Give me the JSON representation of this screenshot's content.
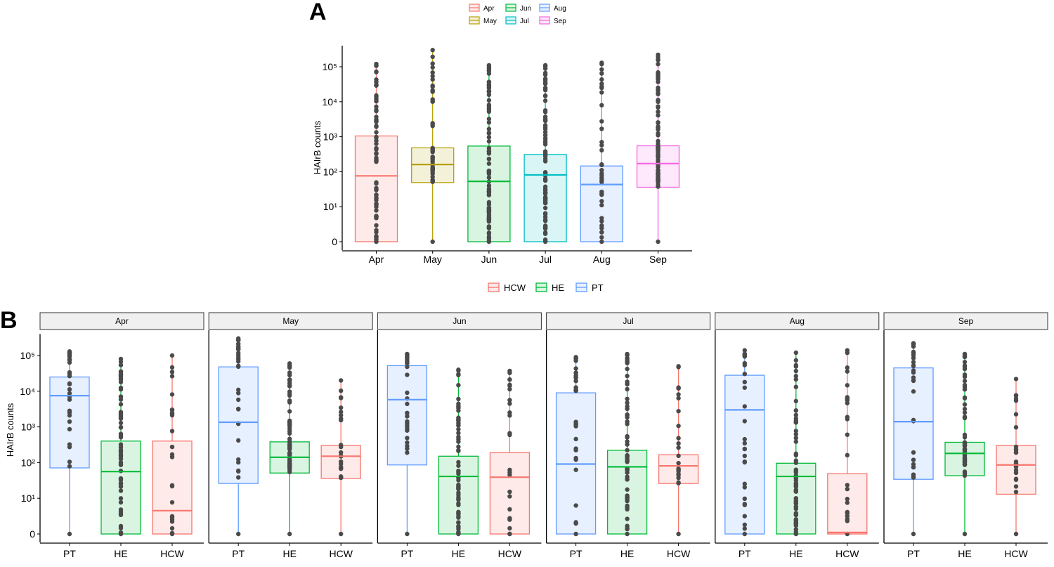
{
  "chart_data": [
    {
      "panel": "A",
      "type": "box",
      "title": "",
      "xlabel": "",
      "ylabel": "HAIrB counts",
      "yscale": "pseudo-log10",
      "y_ticks": [
        "0",
        "10¹",
        "10²",
        "10³",
        "10⁴",
        "10⁵"
      ],
      "categories": [
        "Apr",
        "May",
        "Jun",
        "Jul",
        "Aug",
        "Sep"
      ],
      "legend": {
        "position": "top",
        "entries": [
          "Apr",
          "May",
          "Jun",
          "Jul",
          "Aug",
          "Sep"
        ]
      },
      "colors": [
        "#F8766D",
        "#B79F00",
        "#00BA38",
        "#00BFC4",
        "#619CFF",
        "#F564E3"
      ],
      "series": [
        {
          "name": "Apr",
          "min": 0,
          "q1": 0,
          "median": 75,
          "q3": 1050,
          "max": 120000
        },
        {
          "name": "May",
          "min": 0,
          "q1": 48,
          "median": 160,
          "q3": 480,
          "max": 300000
        },
        {
          "name": "Jun",
          "min": 0,
          "q1": 0,
          "median": 52,
          "q3": 540,
          "max": 110000
        },
        {
          "name": "Jul",
          "min": 0,
          "q1": 0,
          "median": 80,
          "q3": 310,
          "max": 110000
        },
        {
          "name": "Aug",
          "min": 0,
          "q1": 0,
          "median": 42,
          "q3": 145,
          "max": 130000
        },
        {
          "name": "Sep",
          "min": 0,
          "q1": 35,
          "median": 170,
          "q3": 550,
          "max": 220000
        }
      ]
    },
    {
      "panel": "B",
      "type": "box",
      "title": "",
      "xlabel": "",
      "ylabel": "HAIrB counts",
      "yscale": "pseudo-log10",
      "y_ticks": [
        "0",
        "10¹",
        "10²",
        "10³",
        "10⁴",
        "10⁵"
      ],
      "legend": {
        "position": "top",
        "entries": [
          "HCW",
          "HE",
          "PT"
        ]
      },
      "group_colors": {
        "PT": "#619CFF",
        "HE": "#00BA38",
        "HCW": "#F8766D"
      },
      "categories": [
        "PT",
        "HE",
        "HCW"
      ],
      "facets": [
        {
          "label": "Apr",
          "boxes": [
            {
              "group": "PT",
              "min": 0,
              "q1": 70,
              "median": 7500,
              "q3": 25000,
              "max": 130000
            },
            {
              "group": "HE",
              "min": 0,
              "q1": 0,
              "median": 55,
              "q3": 400,
              "max": 80000
            },
            {
              "group": "HCW",
              "min": 0,
              "q1": 0,
              "median": 3.5,
              "q3": 400,
              "max": 100000
            }
          ]
        },
        {
          "label": "May",
          "boxes": [
            {
              "group": "PT",
              "min": 0,
              "q1": 25,
              "median": 1350,
              "q3": 48000,
              "max": 300000
            },
            {
              "group": "HE",
              "min": 0,
              "q1": 50,
              "median": 140,
              "q3": 380,
              "max": 60000
            },
            {
              "group": "HCW",
              "min": 0,
              "q1": 35,
              "median": 150,
              "q3": 300,
              "max": 20000
            }
          ]
        },
        {
          "label": "Jun",
          "boxes": [
            {
              "group": "PT",
              "min": 0,
              "q1": 85,
              "median": 5800,
              "q3": 52000,
              "max": 110000
            },
            {
              "group": "HE",
              "min": 0,
              "q1": 0,
              "median": 40,
              "q3": 150,
              "max": 40000
            },
            {
              "group": "HCW",
              "min": 0,
              "q1": 0,
              "median": 38,
              "q3": 190,
              "max": 37000
            }
          ]
        },
        {
          "label": "Jul",
          "boxes": [
            {
              "group": "PT",
              "min": 0,
              "q1": 0,
              "median": 90,
              "q3": 9000,
              "max": 90000
            },
            {
              "group": "HE",
              "min": 0,
              "q1": 0,
              "median": 75,
              "q3": 220,
              "max": 110000
            },
            {
              "group": "HCW",
              "min": 0,
              "q1": 25,
              "median": 80,
              "q3": 165,
              "max": 50000
            }
          ]
        },
        {
          "label": "Aug",
          "boxes": [
            {
              "group": "PT",
              "min": 0,
              "q1": 0,
              "median": 3000,
              "q3": 28000,
              "max": 140000
            },
            {
              "group": "HE",
              "min": 0,
              "q1": 0,
              "median": 40,
              "q3": 95,
              "max": 120000
            },
            {
              "group": "HCW",
              "min": 0,
              "q1": 0,
              "median": 0.1,
              "q3": 48,
              "max": 140000
            }
          ]
        },
        {
          "label": "Sep",
          "boxes": [
            {
              "group": "PT",
              "min": 0,
              "q1": 33,
              "median": 1400,
              "q3": 45000,
              "max": 220000
            },
            {
              "group": "HE",
              "min": 0,
              "q1": 42,
              "median": 180,
              "q3": 370,
              "max": 110000
            },
            {
              "group": "HCW",
              "min": 0,
              "q1": 12,
              "median": 85,
              "q3": 300,
              "max": 22000
            }
          ]
        }
      ]
    }
  ],
  "panel_labels": {
    "a": "A",
    "b": "B"
  }
}
